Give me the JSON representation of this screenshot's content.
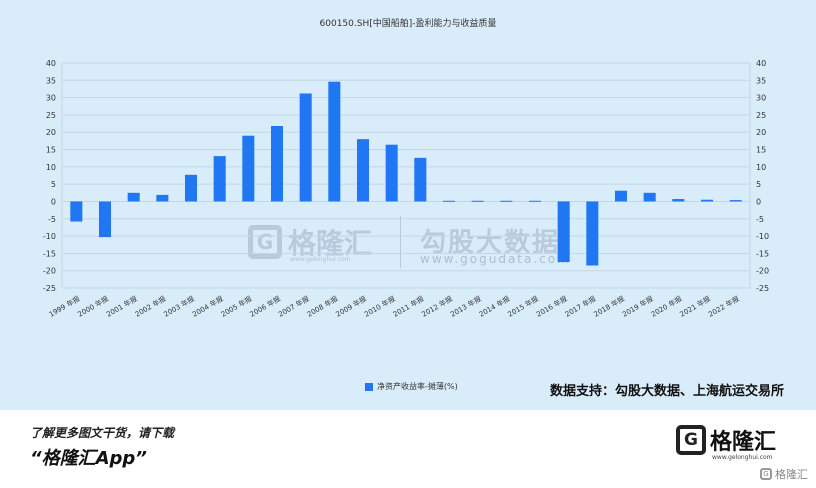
{
  "chart_data": {
    "type": "bar",
    "title": "600150.SH[中国船舶]-盈利能力与收益质量",
    "categories": [
      "1999 年报",
      "2000 年报",
      "2001 年报",
      "2002 年报",
      "2003 年报",
      "2004 年报",
      "2005 年报",
      "2006 年报",
      "2007 年报",
      "2008 年报",
      "2009 年报",
      "2010 年报",
      "2011 年报",
      "2012 年报",
      "2013 年报",
      "2014 年报",
      "2015 年报",
      "2016 年报",
      "2017 年报",
      "2018 年报",
      "2019 年报",
      "2020 年报",
      "2021 年报",
      "2022 年报"
    ],
    "series": [
      {
        "name": "净资产收益率-摊薄(%)",
        "color": "#1f77f4",
        "values": [
          -5.8,
          -10.3,
          2.5,
          1.9,
          7.7,
          13.1,
          19.0,
          21.8,
          31.2,
          34.6,
          18.0,
          16.4,
          12.6,
          0.2,
          0.2,
          0.2,
          0.2,
          -17.5,
          -18.5,
          3.1,
          2.5,
          0.7,
          0.5,
          0.4
        ]
      }
    ],
    "ylim": [
      -25,
      40
    ],
    "yticks": [
      -25,
      -20,
      -15,
      -10,
      -5,
      0,
      5,
      10,
      15,
      20,
      25,
      30,
      35,
      40
    ],
    "grid": true,
    "legend_position": "bottom-center"
  },
  "watermark": {
    "brand": "格隆汇",
    "brand_url": "www.gelonghui.com",
    "name": "勾股大数据",
    "url": "www.gogudata.com"
  },
  "data_support": "数据支持：勾股大数据、上海航运交易所",
  "footer": {
    "promo_line1": "了解更多图文干货，请下载",
    "promo_line2": "“格隆汇App”",
    "logo_letter": "G",
    "logo_brand": "格隆汇",
    "logo_url": "www.gelonghui.com",
    "corner_text": "格隆汇"
  }
}
